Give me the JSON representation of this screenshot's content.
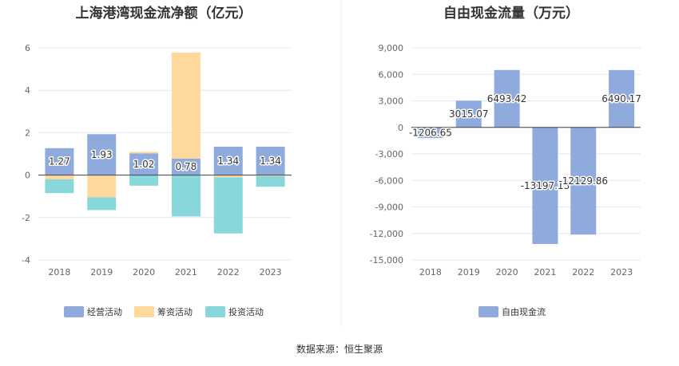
{
  "chart_data": [
    {
      "type": "bar",
      "stacked": true,
      "title": "上海港湾现金流净额（亿元）",
      "categories": [
        "2018",
        "2019",
        "2020",
        "2021",
        "2022",
        "2023"
      ],
      "ylim": [
        -4,
        6
      ],
      "yticks": [
        "6",
        "4",
        "2",
        "0",
        "-2",
        "-4"
      ],
      "grid": true,
      "legend_position": "bottom",
      "series": [
        {
          "name": "经营活动",
          "color": "#8faadc",
          "values": [
            1.27,
            1.93,
            1.02,
            0.78,
            1.34,
            1.34
          ],
          "labels": [
            "1.27",
            "1.93",
            "1.02",
            "0.78",
            "1.34",
            "1.34"
          ]
        },
        {
          "name": "筹资活动",
          "color": "#ffd89b",
          "values": [
            -0.2,
            -1.05,
            0.08,
            5.0,
            -0.1,
            -0.05
          ]
        },
        {
          "name": "投资活动",
          "color": "#88d8db",
          "values": [
            -0.65,
            -0.6,
            -0.5,
            -1.95,
            -2.65,
            -0.5
          ]
        }
      ]
    },
    {
      "type": "bar",
      "title": "自由现金流量（万元）",
      "categories": [
        "2018",
        "2019",
        "2020",
        "2021",
        "2022",
        "2023"
      ],
      "ylim": [
        -15000,
        9000
      ],
      "yticks": [
        "9,000",
        "6,000",
        "3,000",
        "0",
        "-3,000",
        "-6,000",
        "-9,000",
        "-12,000",
        "-15,000"
      ],
      "grid": true,
      "legend_position": "bottom",
      "series": [
        {
          "name": "自由现金流",
          "color": "#8faadc",
          "values": [
            -1206.65,
            3015.07,
            6493.42,
            -13197.13,
            -12129.86,
            6490.17
          ],
          "labels": [
            "-1206.65",
            "3015.07",
            "6493.42",
            "-13197.13",
            "-12129.86",
            "6490.17"
          ]
        }
      ]
    }
  ],
  "source": "数据来源：恒生聚源"
}
